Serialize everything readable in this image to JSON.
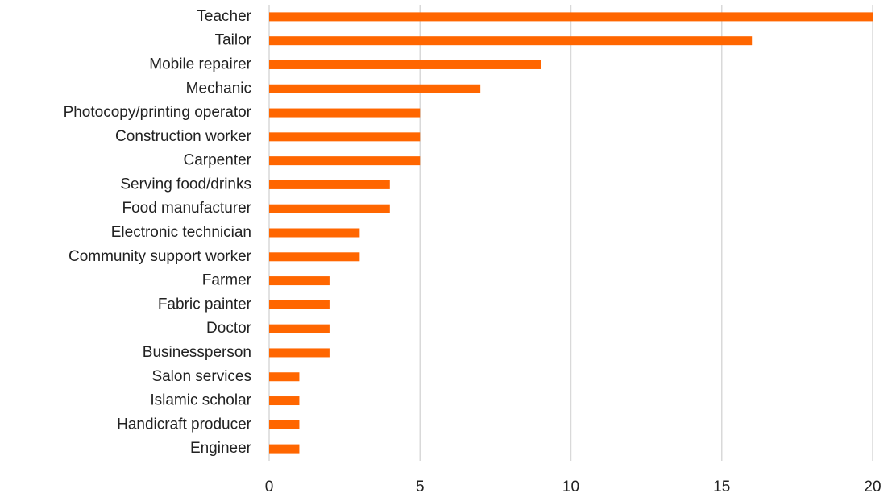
{
  "chart_data": {
    "type": "bar",
    "orientation": "horizontal",
    "categories": [
      "Teacher",
      "Tailor",
      "Mobile repairer",
      "Mechanic",
      "Photocopy/printing operator",
      "Construction worker",
      "Carpenter",
      "Serving food/drinks",
      "Food manufacturer",
      "Electronic technician",
      "Community support worker",
      "Farmer",
      "Fabric painter",
      "Doctor",
      "Businessperson",
      "Salon services",
      "Islamic scholar",
      "Handicraft producer",
      "Engineer"
    ],
    "values": [
      20,
      16,
      9,
      7,
      5,
      5,
      5,
      4,
      4,
      3,
      3,
      2,
      2,
      2,
      2,
      1,
      1,
      1,
      1
    ],
    "color": "#ff6600",
    "xlim": [
      0,
      20
    ],
    "xticks": [
      0,
      5,
      10,
      15,
      20
    ],
    "grid": true
  }
}
